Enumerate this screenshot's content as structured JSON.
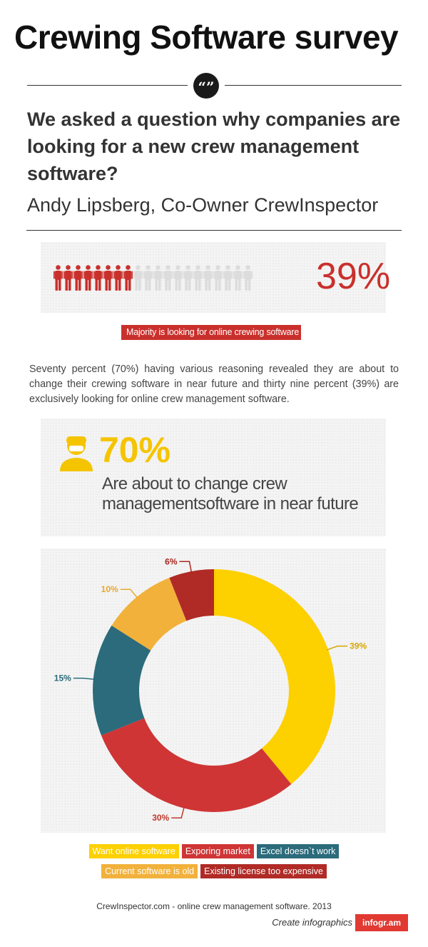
{
  "header": {
    "title": "Crewing Software survey",
    "quote_icon": "quote-icon",
    "quote_glyph": "“”"
  },
  "intro": {
    "question": "We asked a question why companies are looking for a new crew management software?",
    "author": "Andy Lipsberg, Co-Owner CrewInspector"
  },
  "people_stat": {
    "icon": "person-icon",
    "total_icons": 20,
    "highlighted_icons": 8,
    "value": "39%",
    "label": "Majority is looking for online crewing software",
    "highlight_color": "#c9302c",
    "muted_color": "#dcdcdc"
  },
  "summary": "Seventy percent (70%) having various reasoning revealed they are about to change their crewing software in near future and thirty nine percent (39%) are exclusively looking for online crew management software.",
  "seventy_stat": {
    "icon": "worker-icon",
    "value": "70%",
    "description": "Are about to change crew managementsoftware in near future",
    "color": "#f5c400"
  },
  "chart_data": {
    "type": "pie",
    "variant": "donut",
    "title": "",
    "categories": [
      "Want online software",
      "Exporing market",
      "Excel doesn`t work",
      "Current software is old",
      "Existing license too expensive"
    ],
    "values": [
      39,
      30,
      15,
      10,
      6
    ],
    "value_labels": [
      "39%",
      "30%",
      "15%",
      "10%",
      "6%"
    ],
    "colors": [
      "#fdd000",
      "#cf3535",
      "#2b6b7b",
      "#f1b13b",
      "#b02a26"
    ],
    "label_colors": [
      "#d8a700",
      "#c0392b",
      "#2b6b7b",
      "#e9a830",
      "#a8281f"
    ],
    "legend": "bottom"
  },
  "footer": {
    "credit": "CrewInspector.com - online crew management software. 2013",
    "create_label": "Create infographics",
    "brand": "infogr.am"
  }
}
